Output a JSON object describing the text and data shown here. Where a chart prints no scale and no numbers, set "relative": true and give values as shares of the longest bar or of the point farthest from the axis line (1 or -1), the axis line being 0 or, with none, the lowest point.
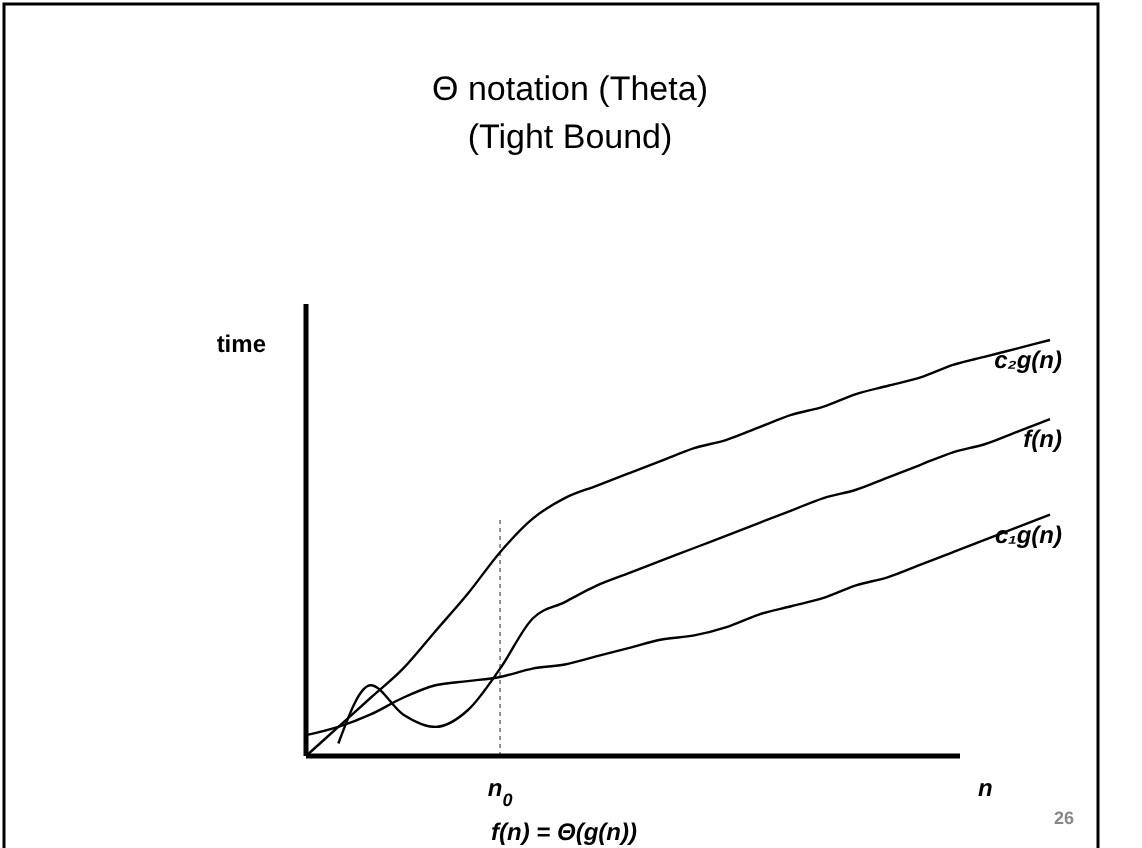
{
  "chart_data": {
    "type": "line",
    "title": "Θ notation (Theta)",
    "subtitle": "(Tight Bound)",
    "ylabel": "time",
    "relative": true,
    "categories": [
      null,
      null,
      null,
      null,
      null,
      null,
      "n$_{0}$",
      null,
      null,
      null,
      null,
      null,
      null,
      null,
      null,
      null,
      null,
      null,
      null,
      null,
      null,
      "n",
      null,
      null
    ],
    "series": [
      {
        "name": "c₂g(n)",
        "color": "#000000",
        "values": [
          0,
          0.07,
          0.14,
          0.21,
          0.3,
          0.39,
          0.49,
          0.57,
          0.62,
          0.65,
          0.68,
          0.71,
          0.74,
          0.76,
          0.79,
          0.82,
          0.84,
          0.87,
          0.89,
          0.91,
          0.94,
          0.96,
          0.98,
          1
        ]
      },
      {
        "name": "f(n)",
        "color": "#000000",
        "values": [
          null,
          0.03,
          0.17,
          0.1,
          0.07,
          0.11,
          0.21,
          0.33,
          0.37,
          0.41,
          0.44,
          0.47,
          0.5,
          0.53,
          0.56,
          0.59,
          0.62,
          0.64,
          0.67,
          0.7,
          0.73,
          0.75,
          0.78,
          0.81
        ]
      },
      {
        "name": "c₁g(n)",
        "color": "#000000",
        "values": [
          0.05,
          0.07,
          0.1,
          0.14,
          0.17,
          0.18,
          0.19,
          0.21,
          0.22,
          0.24,
          0.26,
          0.28,
          0.29,
          0.31,
          0.34,
          0.36,
          0.38,
          0.41,
          0.43,
          0.46,
          0.49,
          0.52,
          0.55,
          0.58
        ]
      }
    ],
    "ref_lines": [
      {
        "axis": "x",
        "value": "n$_{0}$",
        "line_style": "dotted"
      }
    ],
    "annotations": [
      "f(n) = Θ(g(n))",
      "26"
    ]
  }
}
